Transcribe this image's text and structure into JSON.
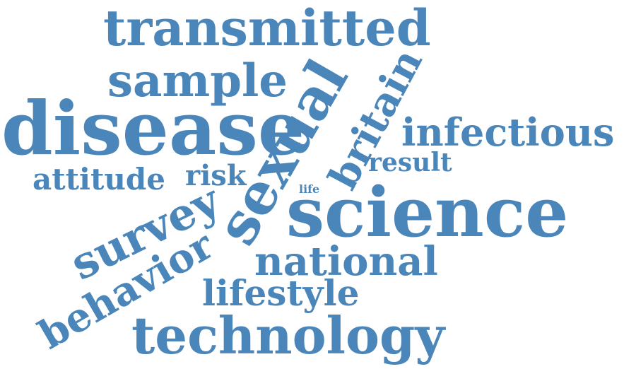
{
  "word_cloud": {
    "color": "#4a86b9",
    "words": [
      {
        "id": "transmitted",
        "text": "transmitted"
      },
      {
        "id": "sample",
        "text": "sample"
      },
      {
        "id": "disease",
        "text": "disease"
      },
      {
        "id": "sexual",
        "text": "sexual"
      },
      {
        "id": "britain",
        "text": "britain"
      },
      {
        "id": "infectious",
        "text": "infectious"
      },
      {
        "id": "result",
        "text": "result"
      },
      {
        "id": "attitude",
        "text": "attitude"
      },
      {
        "id": "risk",
        "text": "risk"
      },
      {
        "id": "life",
        "text": "life"
      },
      {
        "id": "science",
        "text": "science"
      },
      {
        "id": "survey",
        "text": "survey"
      },
      {
        "id": "national",
        "text": "national"
      },
      {
        "id": "behavior",
        "text": "behavior"
      },
      {
        "id": "lifestyle",
        "text": "lifestyle"
      },
      {
        "id": "technology",
        "text": "technology"
      }
    ]
  }
}
